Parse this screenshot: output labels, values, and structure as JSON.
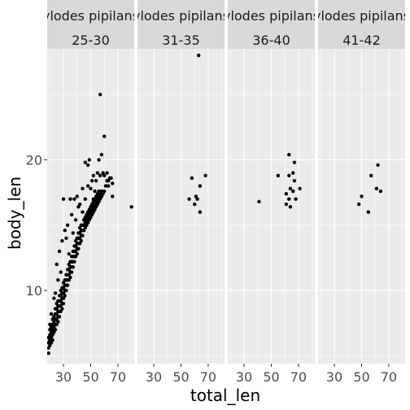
{
  "chart_data": {
    "type": "scatter",
    "facet_rows": [
      "ylodes pipilans",
      "ylodes pipilans",
      "ylodes pipilans",
      "ylodes pipilans"
    ],
    "facets": [
      "25-30",
      "31-35",
      "36-40",
      "41-42"
    ],
    "xlabel": "total_len",
    "ylabel": "body_len",
    "x_ticks": [
      30,
      50,
      70
    ],
    "y_ticks": [
      10,
      20
    ],
    "xlim": [
      18,
      82
    ],
    "ylim": [
      4.4,
      28.5
    ],
    "grid": true,
    "colors": {
      "panel": "#ebebeb",
      "grid": "#ffffff",
      "strip": "#d9d9d9",
      "point": "#000000"
    },
    "series": [
      {
        "facet": "25-30",
        "points": [
          [
            19,
            5.2
          ],
          [
            19,
            5.6
          ],
          [
            19,
            6.0
          ],
          [
            19,
            6.4
          ],
          [
            20,
            5.8
          ],
          [
            20,
            6.2
          ],
          [
            20,
            6.6
          ],
          [
            20,
            7.0
          ],
          [
            21,
            6.0
          ],
          [
            21,
            6.4
          ],
          [
            21,
            6.8
          ],
          [
            21,
            7.2
          ],
          [
            22,
            6.2
          ],
          [
            22,
            6.6
          ],
          [
            22,
            7.0
          ],
          [
            22,
            7.4
          ],
          [
            22,
            7.8
          ],
          [
            23,
            6.8
          ],
          [
            23,
            7.2
          ],
          [
            23,
            7.6
          ],
          [
            23,
            8.0
          ],
          [
            24,
            7.0
          ],
          [
            24,
            7.4
          ],
          [
            24,
            7.8
          ],
          [
            24,
            8.2
          ],
          [
            24,
            8.6
          ],
          [
            25,
            7.4
          ],
          [
            25,
            7.8
          ],
          [
            25,
            8.2
          ],
          [
            25,
            8.6
          ],
          [
            25,
            9.0
          ],
          [
            26,
            7.6
          ],
          [
            26,
            8.0
          ],
          [
            26,
            8.4
          ],
          [
            26,
            8.8
          ],
          [
            26,
            9.2
          ],
          [
            27,
            8.0
          ],
          [
            27,
            8.4
          ],
          [
            27,
            8.8
          ],
          [
            27,
            9.2
          ],
          [
            27,
            9.6
          ],
          [
            28,
            8.4
          ],
          [
            28,
            8.8
          ],
          [
            28,
            9.2
          ],
          [
            28,
            9.6
          ],
          [
            28,
            10.0
          ],
          [
            29,
            8.6
          ],
          [
            29,
            9.0
          ],
          [
            29,
            9.4
          ],
          [
            29,
            9.8
          ],
          [
            29,
            10.2
          ],
          [
            30,
            9.0
          ],
          [
            30,
            9.4
          ],
          [
            30,
            9.8
          ],
          [
            30,
            10.2
          ],
          [
            30,
            10.6
          ],
          [
            31,
            9.6
          ],
          [
            31,
            10.0
          ],
          [
            31,
            10.4
          ],
          [
            31,
            10.8
          ],
          [
            32,
            10.0
          ],
          [
            32,
            10.4
          ],
          [
            32,
            10.8
          ],
          [
            32,
            11.2
          ],
          [
            33,
            10.4
          ],
          [
            33,
            10.8
          ],
          [
            33,
            11.2
          ],
          [
            33,
            11.6
          ],
          [
            34,
            10.8
          ],
          [
            34,
            11.2
          ],
          [
            34,
            11.6
          ],
          [
            34,
            12.0
          ],
          [
            35,
            11.0
          ],
          [
            35,
            11.4
          ],
          [
            35,
            11.8
          ],
          [
            35,
            12.2
          ],
          [
            36,
            11.4
          ],
          [
            36,
            11.8
          ],
          [
            36,
            12.2
          ],
          [
            36,
            12.6
          ],
          [
            37,
            11.8
          ],
          [
            37,
            12.2
          ],
          [
            37,
            12.6
          ],
          [
            37,
            13.0
          ],
          [
            38,
            12.2
          ],
          [
            38,
            12.6
          ],
          [
            38,
            13.0
          ],
          [
            38,
            13.4
          ],
          [
            39,
            12.6
          ],
          [
            39,
            13.0
          ],
          [
            39,
            13.4
          ],
          [
            39,
            13.8
          ],
          [
            40,
            12.8
          ],
          [
            40,
            13.2
          ],
          [
            40,
            13.6
          ],
          [
            40,
            14.0
          ],
          [
            41,
            13.2
          ],
          [
            41,
            13.6
          ],
          [
            41,
            14.0
          ],
          [
            41,
            14.4
          ],
          [
            42,
            13.6
          ],
          [
            42,
            14.0
          ],
          [
            42,
            14.4
          ],
          [
            42,
            14.8
          ],
          [
            43,
            13.8
          ],
          [
            43,
            14.2
          ],
          [
            43,
            14.6
          ],
          [
            43,
            15.0
          ],
          [
            44,
            14.2
          ],
          [
            44,
            14.6
          ],
          [
            44,
            15.0
          ],
          [
            45,
            14.6
          ],
          [
            45,
            15.0
          ],
          [
            45,
            15.4
          ],
          [
            46,
            14.8
          ],
          [
            46,
            15.2
          ],
          [
            46,
            15.6
          ],
          [
            47,
            15.0
          ],
          [
            47,
            15.4
          ],
          [
            47,
            15.8
          ],
          [
            48,
            15.2
          ],
          [
            48,
            15.6
          ],
          [
            48,
            16.0
          ],
          [
            49,
            15.4
          ],
          [
            49,
            15.8
          ],
          [
            49,
            16.2
          ],
          [
            50,
            15.6
          ],
          [
            50,
            16.0
          ],
          [
            50,
            16.4
          ],
          [
            51,
            15.8
          ],
          [
            51,
            16.2
          ],
          [
            51,
            16.6
          ],
          [
            52,
            16.0
          ],
          [
            52,
            16.4
          ],
          [
            52,
            16.8
          ],
          [
            53,
            16.2
          ],
          [
            53,
            16.6
          ],
          [
            53,
            17.0
          ],
          [
            54,
            16.4
          ],
          [
            54,
            16.8
          ],
          [
            54,
            17.2
          ],
          [
            55,
            16.6
          ],
          [
            55,
            17.0
          ],
          [
            55,
            17.4
          ],
          [
            56,
            16.8
          ],
          [
            56,
            17.2
          ],
          [
            56,
            17.6
          ],
          [
            57,
            17.0
          ],
          [
            57,
            17.4
          ],
          [
            58,
            17.2
          ],
          [
            58,
            17.6
          ],
          [
            59,
            17.4
          ],
          [
            60,
            17.6
          ],
          [
            61,
            18.0
          ],
          [
            62,
            18.4
          ],
          [
            25,
            12.0
          ],
          [
            27,
            13.0
          ],
          [
            28,
            11.4
          ],
          [
            29,
            13.8
          ],
          [
            31,
            14.6
          ],
          [
            33,
            15.0
          ],
          [
            36,
            15.8
          ],
          [
            37,
            14.4
          ],
          [
            38,
            17.0
          ],
          [
            40,
            17.2
          ],
          [
            42,
            16.6
          ],
          [
            44,
            16.0
          ],
          [
            46,
            17.0
          ],
          [
            48,
            18.0
          ],
          [
            50,
            17.8
          ],
          [
            52,
            18.8
          ],
          [
            54,
            18.4
          ],
          [
            55,
            19.0
          ],
          [
            57,
            18.8
          ],
          [
            59,
            19.0
          ],
          [
            60,
            18.8
          ],
          [
            62,
            19.0
          ],
          [
            63,
            18.4
          ],
          [
            64,
            18.6
          ],
          [
            66,
            17.2
          ],
          [
            46,
            19.8
          ],
          [
            48,
            19.6
          ],
          [
            49,
            20.0
          ],
          [
            51,
            18.4
          ],
          [
            53,
            17.6
          ],
          [
            56,
            20.0
          ],
          [
            58,
            20.4
          ],
          [
            60,
            21.8
          ],
          [
            57,
            25.0
          ],
          [
            35,
            17.0
          ],
          [
            30,
            17.0
          ],
          [
            32,
            14.0
          ],
          [
            34,
            12.8
          ],
          [
            26,
            10.8
          ],
          [
            23,
            9.4
          ],
          [
            21,
            8.2
          ],
          [
            20,
            7.4
          ],
          [
            24,
            9.8
          ],
          [
            39,
            15.4
          ],
          [
            41,
            16.4
          ],
          [
            44,
            17.8
          ],
          [
            52,
            17.0
          ],
          [
            63,
            18.0
          ],
          [
            65,
            18.6
          ],
          [
            66,
            18.2
          ],
          [
            80,
            16.4
          ]
        ]
      },
      {
        "facet": "31-35",
        "points": [
          [
            63,
            28.0
          ],
          [
            58,
            18.6
          ],
          [
            64,
            18.0
          ],
          [
            68,
            18.8
          ],
          [
            56,
            17.0
          ],
          [
            61,
            17.2
          ],
          [
            62,
            17.0
          ],
          [
            60,
            16.6
          ],
          [
            64,
            16.0
          ]
        ]
      },
      {
        "facet": "36-40",
        "points": [
          [
            63,
            20.4
          ],
          [
            67,
            19.8
          ],
          [
            66,
            19.0
          ],
          [
            55,
            18.8
          ],
          [
            63,
            18.8
          ],
          [
            67,
            18.4
          ],
          [
            64,
            17.8
          ],
          [
            66,
            17.6
          ],
          [
            61,
            17.4
          ],
          [
            71,
            17.8
          ],
          [
            63,
            17.0
          ],
          [
            68,
            17.0
          ],
          [
            41,
            16.8
          ],
          [
            61,
            16.6
          ],
          [
            64,
            16.4
          ]
        ]
      },
      {
        "facet": "41-42",
        "points": [
          [
            62,
            19.6
          ],
          [
            57,
            18.8
          ],
          [
            61,
            17.8
          ],
          [
            64,
            17.6
          ],
          [
            50,
            17.2
          ],
          [
            48,
            16.6
          ],
          [
            55,
            16.0
          ]
        ]
      }
    ]
  }
}
